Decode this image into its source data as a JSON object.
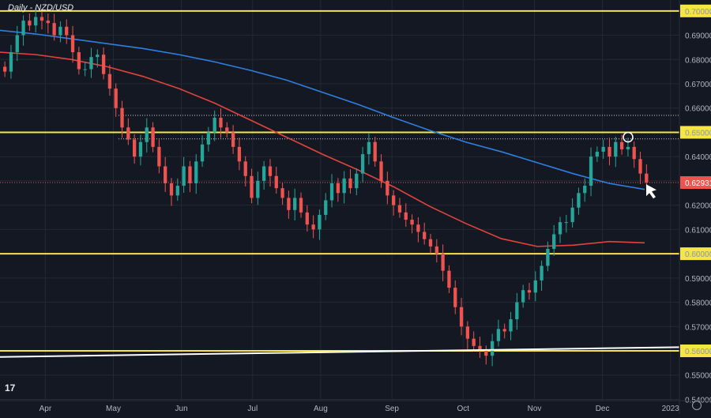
{
  "header": {
    "title": "Daily - NZD/USD"
  },
  "chart_data": {
    "type": "candlestick",
    "symbol": "NZD/USD",
    "timeframe": "Daily",
    "ylim": [
      0.5395,
      0.7045
    ],
    "y_ticks": [
      "0.70000",
      "0.69000",
      "0.68000",
      "0.67000",
      "0.66000",
      "0.65000",
      "0.64000",
      "0.63000",
      "0.62000",
      "0.61000",
      "0.60000",
      "0.59000",
      "0.58000",
      "0.57000",
      "0.56000",
      "0.55000",
      "0.54000"
    ],
    "x_ticks": [
      "Apr",
      "May",
      "Jun",
      "Jul",
      "Aug",
      "Sep",
      "Oct",
      "Nov",
      "Dec",
      "2023"
    ],
    "last_price": "0.62931",
    "horizontal_levels": [
      {
        "value": 0.7,
        "label": "0.70000",
        "color": "#f5e642"
      },
      {
        "value": 0.65,
        "label": "0.65000",
        "color": "#f5e642"
      },
      {
        "value": 0.6,
        "label": "0.60000",
        "color": "#f5e642"
      },
      {
        "value": 0.56,
        "label": "0.56000",
        "color": "#f5e642"
      }
    ],
    "dotted_levels": [
      0.657,
      0.6473
    ],
    "trendline": {
      "from": 0.5575,
      "to": 0.5615,
      "color": "#ffffff"
    },
    "moving_averages": [
      {
        "name": "",
        "color": "#2f7fe0",
        "values": [
          0.692,
          0.6905,
          0.6885,
          0.6865,
          0.6845,
          0.682,
          0.679,
          0.6755,
          0.6715,
          0.6665,
          0.6615,
          0.656,
          0.6508,
          0.646,
          0.642,
          0.6375,
          0.633,
          0.629,
          0.6265
        ]
      },
      {
        "name": "",
        "color": "#e2443c",
        "values": [
          0.683,
          0.682,
          0.68,
          0.677,
          0.673,
          0.668,
          0.662,
          0.655,
          0.648,
          0.641,
          0.6345,
          0.6275,
          0.6195,
          0.6125,
          0.6062,
          0.603,
          0.6035,
          0.605,
          0.6045
        ]
      }
    ],
    "candles": [
      0.675,
      0.683,
      0.69,
      0.696,
      0.694,
      0.6975,
      0.696,
      0.695,
      0.69,
      0.6935,
      0.69,
      0.683,
      0.676,
      0.676,
      0.681,
      0.682,
      0.674,
      0.668,
      0.66,
      0.652,
      0.647,
      0.64,
      0.646,
      0.652,
      0.644,
      0.636,
      0.629,
      0.624,
      0.628,
      0.636,
      0.629,
      0.638,
      0.645,
      0.65,
      0.656,
      0.652,
      0.65,
      0.644,
      0.638,
      0.632,
      0.623,
      0.63,
      0.636,
      0.632,
      0.627,
      0.623,
      0.618,
      0.623,
      0.617,
      0.612,
      0.61,
      0.616,
      0.622,
      0.629,
      0.625,
      0.631,
      0.627,
      0.633,
      0.641,
      0.646,
      0.638,
      0.63,
      0.624,
      0.62,
      0.617,
      0.614,
      0.612,
      0.609,
      0.606,
      0.603,
      0.6,
      0.593,
      0.586,
      0.578,
      0.57,
      0.565,
      0.562,
      0.56,
      0.558,
      0.564,
      0.569,
      0.568,
      0.573,
      0.58,
      0.585,
      0.584,
      0.589,
      0.595,
      0.602,
      0.608,
      0.613,
      0.613,
      0.619,
      0.625,
      0.628,
      0.64,
      0.642,
      0.644,
      0.64,
      0.646,
      0.643,
      0.644,
      0.639,
      0.633,
      0.6293
    ],
    "annotations": [
      {
        "type": "circle",
        "label": "",
        "at_value": 0.648
      },
      {
        "type": "arrow",
        "label": "",
        "at_value": 0.626
      }
    ]
  },
  "colors": {
    "up": "#26a69a",
    "down": "#ef5350",
    "grid": "#242833",
    "background": "#141823"
  }
}
